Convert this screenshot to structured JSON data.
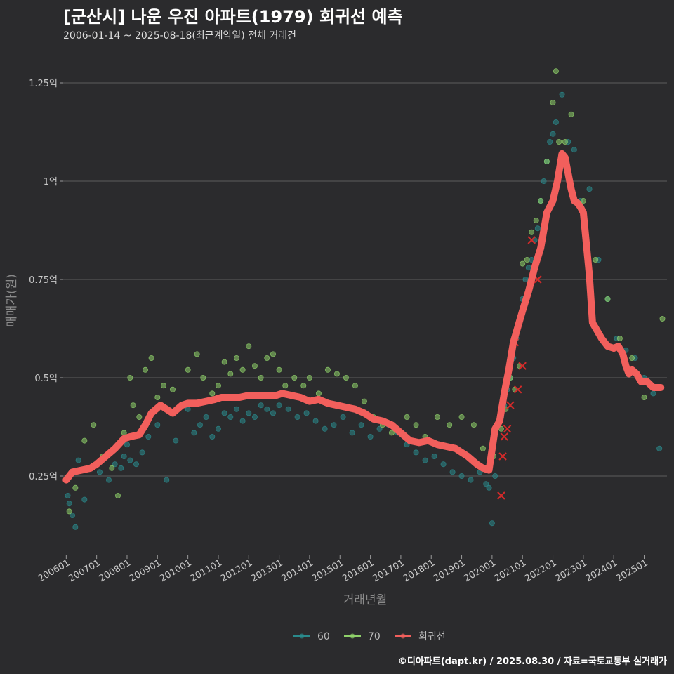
{
  "header": {
    "title": "[군산시] 나운 우진 아파트(1979) 회귀선 예측",
    "subtitle": "2006-01-14 ~ 2025-08-18(최근계약일) 전체 거래건"
  },
  "footer": {
    "credit": "©디아파트(dapt.kr) / 2025.08.30 / 자료=국토교통부 실거래가"
  },
  "colors": {
    "background": "#2b2b2d",
    "grid": "#5d5d5d",
    "series_60": "#2a8a8c",
    "series_70": "#8fd16a",
    "regression": "#f25f5c",
    "outlier": "#d42a2a"
  },
  "chart_data": {
    "type": "scatter",
    "title": "[군산시] 나운 우진 아파트(1979) 회귀선 예측",
    "xlabel": "거래년월",
    "ylabel": "매매가(원)",
    "xlim": [
      2005.9,
      2025.75
    ],
    "ylim": [
      0.05,
      1.3
    ],
    "y_unit": "억",
    "yticks": [
      {
        "value": 0.25,
        "label": "0.25억"
      },
      {
        "value": 0.5,
        "label": "0.5억"
      },
      {
        "value": 0.75,
        "label": "0.75억"
      },
      {
        "value": 1.0,
        "label": "1억"
      },
      {
        "value": 1.25,
        "label": "1.25억"
      }
    ],
    "xticks": [
      {
        "value": 2006.0,
        "label": "200601"
      },
      {
        "value": 2007.0,
        "label": "200701"
      },
      {
        "value": 2008.0,
        "label": "200801"
      },
      {
        "value": 2009.0,
        "label": "200901"
      },
      {
        "value": 2010.0,
        "label": "201001"
      },
      {
        "value": 2011.0,
        "label": "201101"
      },
      {
        "value": 2012.0,
        "label": "201201"
      },
      {
        "value": 2013.0,
        "label": "201301"
      },
      {
        "value": 2014.0,
        "label": "201401"
      },
      {
        "value": 2015.0,
        "label": "201501"
      },
      {
        "value": 2016.0,
        "label": "201601"
      },
      {
        "value": 2017.0,
        "label": "201701"
      },
      {
        "value": 2018.0,
        "label": "201801"
      },
      {
        "value": 2019.0,
        "label": "201901"
      },
      {
        "value": 2020.0,
        "label": "202001"
      },
      {
        "value": 2021.0,
        "label": "202101"
      },
      {
        "value": 2022.0,
        "label": "202201"
      },
      {
        "value": 2023.0,
        "label": "202301"
      },
      {
        "value": 2024.0,
        "label": "202401"
      },
      {
        "value": 2025.0,
        "label": "202501"
      }
    ],
    "legend": [
      {
        "key": "series_60",
        "label": "60"
      },
      {
        "key": "series_70",
        "label": "70"
      },
      {
        "key": "regression",
        "label": "회귀선"
      }
    ],
    "regression": {
      "name": "회귀선",
      "x": [
        2006.0,
        2006.2,
        2006.5,
        2006.8,
        2007.0,
        2007.3,
        2007.6,
        2007.9,
        2008.1,
        2008.4,
        2008.6,
        2008.8,
        2009.1,
        2009.3,
        2009.5,
        2009.8,
        2010.0,
        2010.3,
        2010.6,
        2010.9,
        2011.1,
        2011.4,
        2011.7,
        2012.0,
        2012.3,
        2012.6,
        2012.9,
        2013.1,
        2013.4,
        2013.7,
        2014.0,
        2014.3,
        2014.6,
        2014.9,
        2015.2,
        2015.5,
        2015.8,
        2016.1,
        2016.4,
        2016.7,
        2017.0,
        2017.3,
        2017.6,
        2017.9,
        2018.2,
        2018.5,
        2018.8,
        2019.0,
        2019.2,
        2019.5,
        2019.7,
        2019.9,
        2020.1,
        2020.25,
        2020.4,
        2020.55,
        2020.7,
        2020.85,
        2021.0,
        2021.2,
        2021.4,
        2021.6,
        2021.8,
        2022.0,
        2022.15,
        2022.3,
        2022.4,
        2022.5,
        2022.6,
        2022.7,
        2022.8,
        2022.9,
        2023.0,
        2023.1,
        2023.2,
        2023.3,
        2023.45,
        2023.6,
        2023.8,
        2024.0,
        2024.15,
        2024.3,
        2024.4,
        2024.5,
        2024.6,
        2024.75,
        2024.9,
        2025.1,
        2025.3,
        2025.55
      ],
      "y": [
        0.24,
        0.26,
        0.265,
        0.27,
        0.28,
        0.3,
        0.32,
        0.345,
        0.35,
        0.355,
        0.38,
        0.41,
        0.43,
        0.42,
        0.41,
        0.43,
        0.435,
        0.435,
        0.44,
        0.445,
        0.45,
        0.45,
        0.45,
        0.455,
        0.455,
        0.455,
        0.455,
        0.46,
        0.455,
        0.45,
        0.44,
        0.445,
        0.435,
        0.43,
        0.425,
        0.42,
        0.41,
        0.395,
        0.39,
        0.38,
        0.36,
        0.34,
        0.335,
        0.34,
        0.33,
        0.325,
        0.32,
        0.31,
        0.3,
        0.28,
        0.27,
        0.265,
        0.37,
        0.39,
        0.46,
        0.52,
        0.59,
        0.63,
        0.67,
        0.72,
        0.78,
        0.83,
        0.92,
        0.95,
        1.0,
        1.07,
        1.06,
        1.02,
        0.98,
        0.95,
        0.945,
        0.935,
        0.92,
        0.84,
        0.76,
        0.64,
        0.62,
        0.6,
        0.58,
        0.575,
        0.58,
        0.56,
        0.53,
        0.51,
        0.52,
        0.51,
        0.49,
        0.49,
        0.475,
        0.475
      ]
    },
    "series": [
      {
        "name": "60",
        "x": [
          2006.05,
          2006.1,
          2006.2,
          2006.3,
          2006.4,
          2006.6,
          2007.1,
          2007.4,
          2007.6,
          2007.8,
          2007.9,
          2008.0,
          2008.1,
          2008.3,
          2008.5,
          2008.7,
          2009.0,
          2009.3,
          2009.6,
          2010.0,
          2010.2,
          2010.4,
          2010.6,
          2010.8,
          2011.0,
          2011.2,
          2011.4,
          2011.6,
          2011.8,
          2012.0,
          2012.2,
          2012.4,
          2012.6,
          2012.8,
          2013.0,
          2013.3,
          2013.6,
          2013.9,
          2014.2,
          2014.5,
          2014.8,
          2015.1,
          2015.4,
          2015.7,
          2016.0,
          2016.3,
          2016.6,
          2016.9,
          2017.2,
          2017.5,
          2017.8,
          2018.1,
          2018.4,
          2018.7,
          2019.0,
          2019.3,
          2019.6,
          2019.8,
          2019.9,
          2020.0,
          2020.1,
          2020.2,
          2020.3,
          2020.4,
          2020.5,
          2020.6,
          2020.7,
          2020.8,
          2020.9,
          2021.0,
          2021.1,
          2021.2,
          2021.3,
          2021.4,
          2021.5,
          2021.6,
          2021.7,
          2021.8,
          2021.9,
          2022.0,
          2022.1,
          2022.3,
          2022.5,
          2022.7,
          2022.9,
          2023.2,
          2023.5,
          2023.8,
          2024.1,
          2024.4,
          2024.7,
          2025.0,
          2025.3,
          2025.5
        ],
        "y": [
          0.2,
          0.18,
          0.15,
          0.12,
          0.29,
          0.19,
          0.26,
          0.24,
          0.28,
          0.27,
          0.3,
          0.33,
          0.29,
          0.28,
          0.31,
          0.35,
          0.38,
          0.24,
          0.34,
          0.42,
          0.36,
          0.38,
          0.4,
          0.35,
          0.37,
          0.41,
          0.4,
          0.42,
          0.39,
          0.41,
          0.4,
          0.43,
          0.42,
          0.41,
          0.43,
          0.42,
          0.4,
          0.41,
          0.39,
          0.37,
          0.38,
          0.4,
          0.36,
          0.38,
          0.35,
          0.37,
          0.38,
          0.36,
          0.33,
          0.31,
          0.29,
          0.3,
          0.28,
          0.26,
          0.25,
          0.24,
          0.26,
          0.23,
          0.22,
          0.13,
          0.25,
          0.38,
          0.4,
          0.43,
          0.47,
          0.5,
          0.55,
          0.6,
          0.65,
          0.7,
          0.75,
          0.78,
          0.8,
          0.85,
          0.88,
          0.95,
          1.0,
          1.05,
          1.1,
          1.12,
          1.15,
          1.22,
          1.1,
          1.08,
          0.95,
          0.98,
          0.8,
          0.7,
          0.6,
          0.57,
          0.55,
          0.5,
          0.46,
          0.32
        ]
      },
      {
        "name": "70",
        "x": [
          2006.1,
          2006.3,
          2006.6,
          2006.9,
          2007.2,
          2007.5,
          2007.7,
          2007.9,
          2008.1,
          2008.2,
          2008.4,
          2008.6,
          2008.8,
          2009.0,
          2009.2,
          2009.5,
          2009.8,
          2010.0,
          2010.3,
          2010.5,
          2010.8,
          2011.0,
          2011.2,
          2011.4,
          2011.6,
          2011.8,
          2012.0,
          2012.2,
          2012.4,
          2012.6,
          2012.8,
          2013.0,
          2013.2,
          2013.5,
          2013.8,
          2014.0,
          2014.3,
          2014.6,
          2014.9,
          2015.2,
          2015.5,
          2015.8,
          2016.1,
          2016.4,
          2016.7,
          2017.2,
          2017.5,
          2017.8,
          2018.2,
          2018.6,
          2019.0,
          2019.4,
          2019.7,
          2020.05,
          2020.3,
          2020.45,
          2020.6,
          2020.75,
          2020.9,
          2021.0,
          2021.15,
          2021.3,
          2021.45,
          2021.6,
          2021.8,
          2022.0,
          2022.1,
          2022.2,
          2022.4,
          2022.6,
          2023.0,
          2023.4,
          2023.8,
          2024.2,
          2024.6,
          2025.0,
          2025.6
        ],
        "y": [
          0.16,
          0.22,
          0.34,
          0.38,
          0.3,
          0.27,
          0.2,
          0.36,
          0.5,
          0.43,
          0.4,
          0.52,
          0.55,
          0.45,
          0.48,
          0.47,
          0.43,
          0.52,
          0.56,
          0.5,
          0.46,
          0.48,
          0.54,
          0.51,
          0.55,
          0.52,
          0.58,
          0.53,
          0.5,
          0.55,
          0.56,
          0.52,
          0.48,
          0.5,
          0.48,
          0.5,
          0.46,
          0.52,
          0.51,
          0.5,
          0.48,
          0.44,
          0.4,
          0.38,
          0.36,
          0.4,
          0.38,
          0.35,
          0.4,
          0.38,
          0.4,
          0.38,
          0.32,
          0.3,
          0.37,
          0.42,
          0.5,
          0.47,
          0.53,
          0.79,
          0.8,
          0.87,
          0.9,
          0.95,
          1.05,
          1.2,
          1.28,
          1.1,
          1.1,
          1.17,
          0.95,
          0.8,
          0.7,
          0.6,
          0.55,
          0.45,
          0.65
        ]
      }
    ],
    "outliers": {
      "x": [
        2020.3,
        2020.35,
        2020.4,
        2020.5,
        2020.6,
        2020.75,
        2020.85,
        2021.0,
        2021.3,
        2021.5
      ],
      "y": [
        0.2,
        0.3,
        0.35,
        0.37,
        0.43,
        0.59,
        0.47,
        0.53,
        0.85,
        0.75
      ]
    }
  }
}
